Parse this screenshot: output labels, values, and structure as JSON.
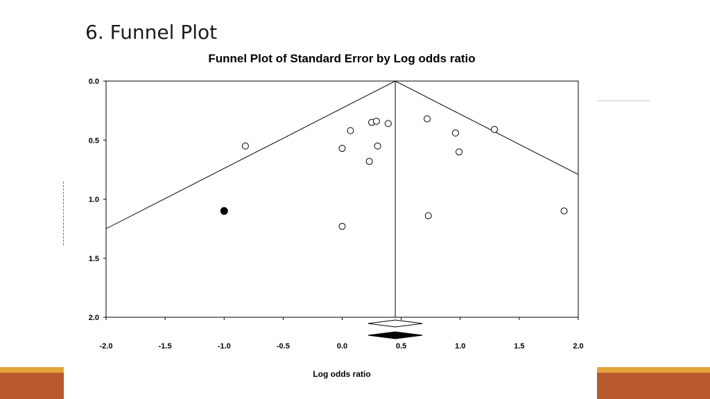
{
  "slide": {
    "title": "6. Funnel Plot"
  },
  "colors": {
    "accent_orange": "#e5a33a",
    "accent_brown": "#b85a2c",
    "plot_line": "#000000"
  },
  "chart_data": {
    "type": "scatter",
    "title": "Funnel Plot of Standard Error by Log odds ratio",
    "xlabel": "Log odds ratio",
    "ylabel": "",
    "xlim": [
      -2.0,
      2.0
    ],
    "ylim": [
      0.0,
      2.0
    ],
    "y_inverted": true,
    "grid": false,
    "x_ticks": [
      "-2.0",
      "-1.5",
      "-1.0",
      "-0.5",
      "0.0",
      "0.5",
      "1.0",
      "1.5",
      "2.0"
    ],
    "y_ticks": [
      "0.0",
      "0.5",
      "1.0",
      "1.5",
      "2.0"
    ],
    "pooled_estimate": 0.45,
    "funnel": {
      "center": 0.45,
      "apex_se": 0.0,
      "slope": 1.96
    },
    "series": [
      {
        "marker": "open-circle",
        "points": [
          {
            "x": -0.82,
            "y": 0.55
          },
          {
            "x": 0.0,
            "y": 0.57
          },
          {
            "x": 0.07,
            "y": 0.42
          },
          {
            "x": 0.25,
            "y": 0.35
          },
          {
            "x": 0.29,
            "y": 0.34
          },
          {
            "x": 0.39,
            "y": 0.36
          },
          {
            "x": 0.3,
            "y": 0.55
          },
          {
            "x": 0.23,
            "y": 0.68
          },
          {
            "x": 0.0,
            "y": 1.23
          },
          {
            "x": 0.72,
            "y": 0.32
          },
          {
            "x": 0.96,
            "y": 0.44
          },
          {
            "x": 0.99,
            "y": 0.6
          },
          {
            "x": 1.29,
            "y": 0.41
          },
          {
            "x": 0.73,
            "y": 1.14
          },
          {
            "x": 1.88,
            "y": 1.1
          }
        ]
      },
      {
        "marker": "filled-circle",
        "points": [
          {
            "x": -1.0,
            "y": 1.1
          }
        ]
      }
    ],
    "summary_diamonds": [
      {
        "style": "open",
        "center": 0.45,
        "lower": 0.22,
        "upper": 0.68
      },
      {
        "style": "filled",
        "center": 0.45,
        "lower": 0.22,
        "upper": 0.68
      }
    ]
  }
}
